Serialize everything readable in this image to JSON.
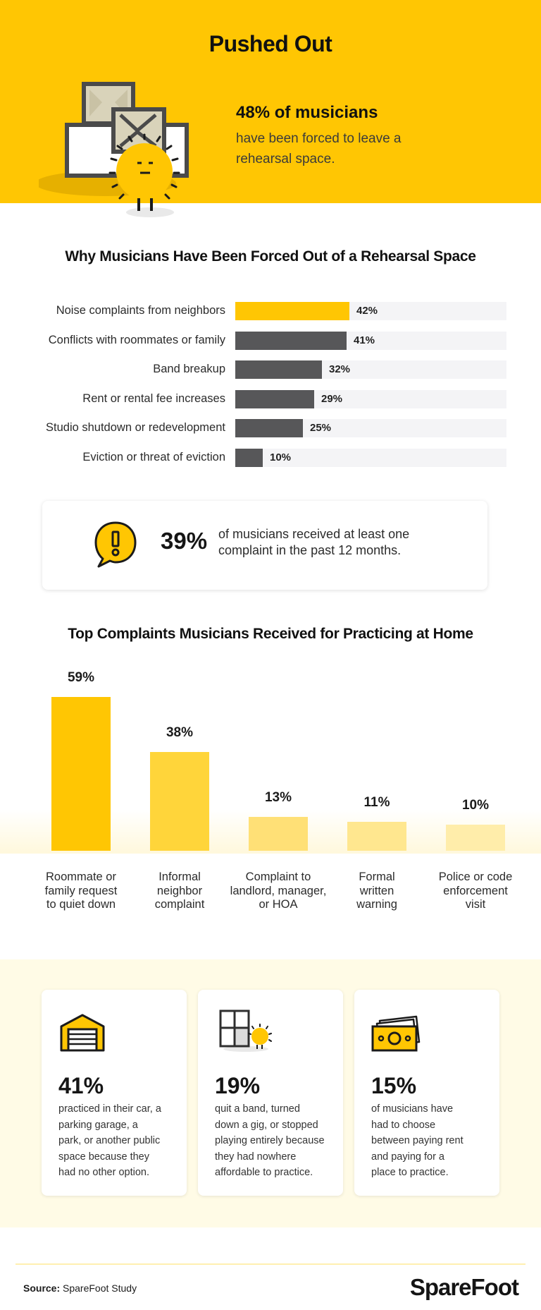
{
  "hero": {
    "title": "Pushed Out",
    "stat_big": "48% of musicians",
    "stat_line1": "have been forced to leave a",
    "stat_line2": "rehearsal space."
  },
  "section1": {
    "title": "Why Musicians Have Been Forced Out of a Rehearsal Space"
  },
  "callout": {
    "percent": "39%",
    "line1": "of musicians received at least one",
    "line2": "complaint in the past 12 months.",
    "icon": "exclamation-speech-bubble-icon"
  },
  "section2": {
    "title": "Top Complaints Musicians Received for Practicing at Home"
  },
  "colors": {
    "brand_yellow": "#ffc603",
    "dark_bar": "#575759",
    "track": "#f4f4f6",
    "column_shades": [
      "#ffc603",
      "#ffd53a",
      "#ffe076",
      "#ffe78f",
      "#ffedaa"
    ]
  },
  "chart_data": [
    {
      "type": "bar",
      "orientation": "horizontal",
      "title": "Why Musicians Have Been Forced Out of a Rehearsal Space",
      "categories": [
        "Noise complaints from neighbors",
        "Conflicts with roommates or family",
        "Band breakup",
        "Rent or rental fee increases",
        "Studio shutdown or redevelopment",
        "Eviction or threat of eviction"
      ],
      "values": [
        42,
        41,
        32,
        29,
        25,
        10
      ],
      "value_labels": [
        "42%",
        "41%",
        "32%",
        "29%",
        "25%",
        "10%"
      ],
      "highlight_index": 0,
      "xlim": [
        0,
        100
      ]
    },
    {
      "type": "bar",
      "orientation": "vertical",
      "title": "Top Complaints Musicians Received for Practicing at Home",
      "categories": [
        [
          "Roommate or",
          "family request",
          "to quiet down"
        ],
        [
          "Informal",
          "neighbor",
          "complaint"
        ],
        [
          "Complaint to",
          "landlord, manager,",
          "or HOA"
        ],
        [
          "Formal",
          "written",
          "warning"
        ],
        [
          "Police or code",
          "enforcement",
          "visit"
        ]
      ],
      "values": [
        59,
        38,
        13,
        11,
        10
      ],
      "value_labels": [
        "59%",
        "38%",
        "13%",
        "11%",
        "10%"
      ],
      "ylim": [
        0,
        59
      ]
    }
  ],
  "cards": [
    {
      "icon": "garage-icon",
      "percent": "41%",
      "lines": [
        "practiced in their car, a",
        "parking garage, a",
        "park, or another public",
        "space because they",
        "had no other option."
      ]
    },
    {
      "icon": "boxes-with-mascot-icon",
      "percent": "19%",
      "lines": [
        "quit a band, turned",
        "down a gig, or stopped",
        "playing entirely because",
        "they had nowhere",
        "affordable to practice."
      ]
    },
    {
      "icon": "cash-bills-icon",
      "percent": "15%",
      "lines": [
        "of musicians have",
        "had to choose",
        "between paying rent",
        "and paying for a",
        "place to practice."
      ]
    }
  ],
  "footer": {
    "source_label": "Source:",
    "source_text": " SpareFoot Study",
    "brand": "SpareFoot"
  }
}
